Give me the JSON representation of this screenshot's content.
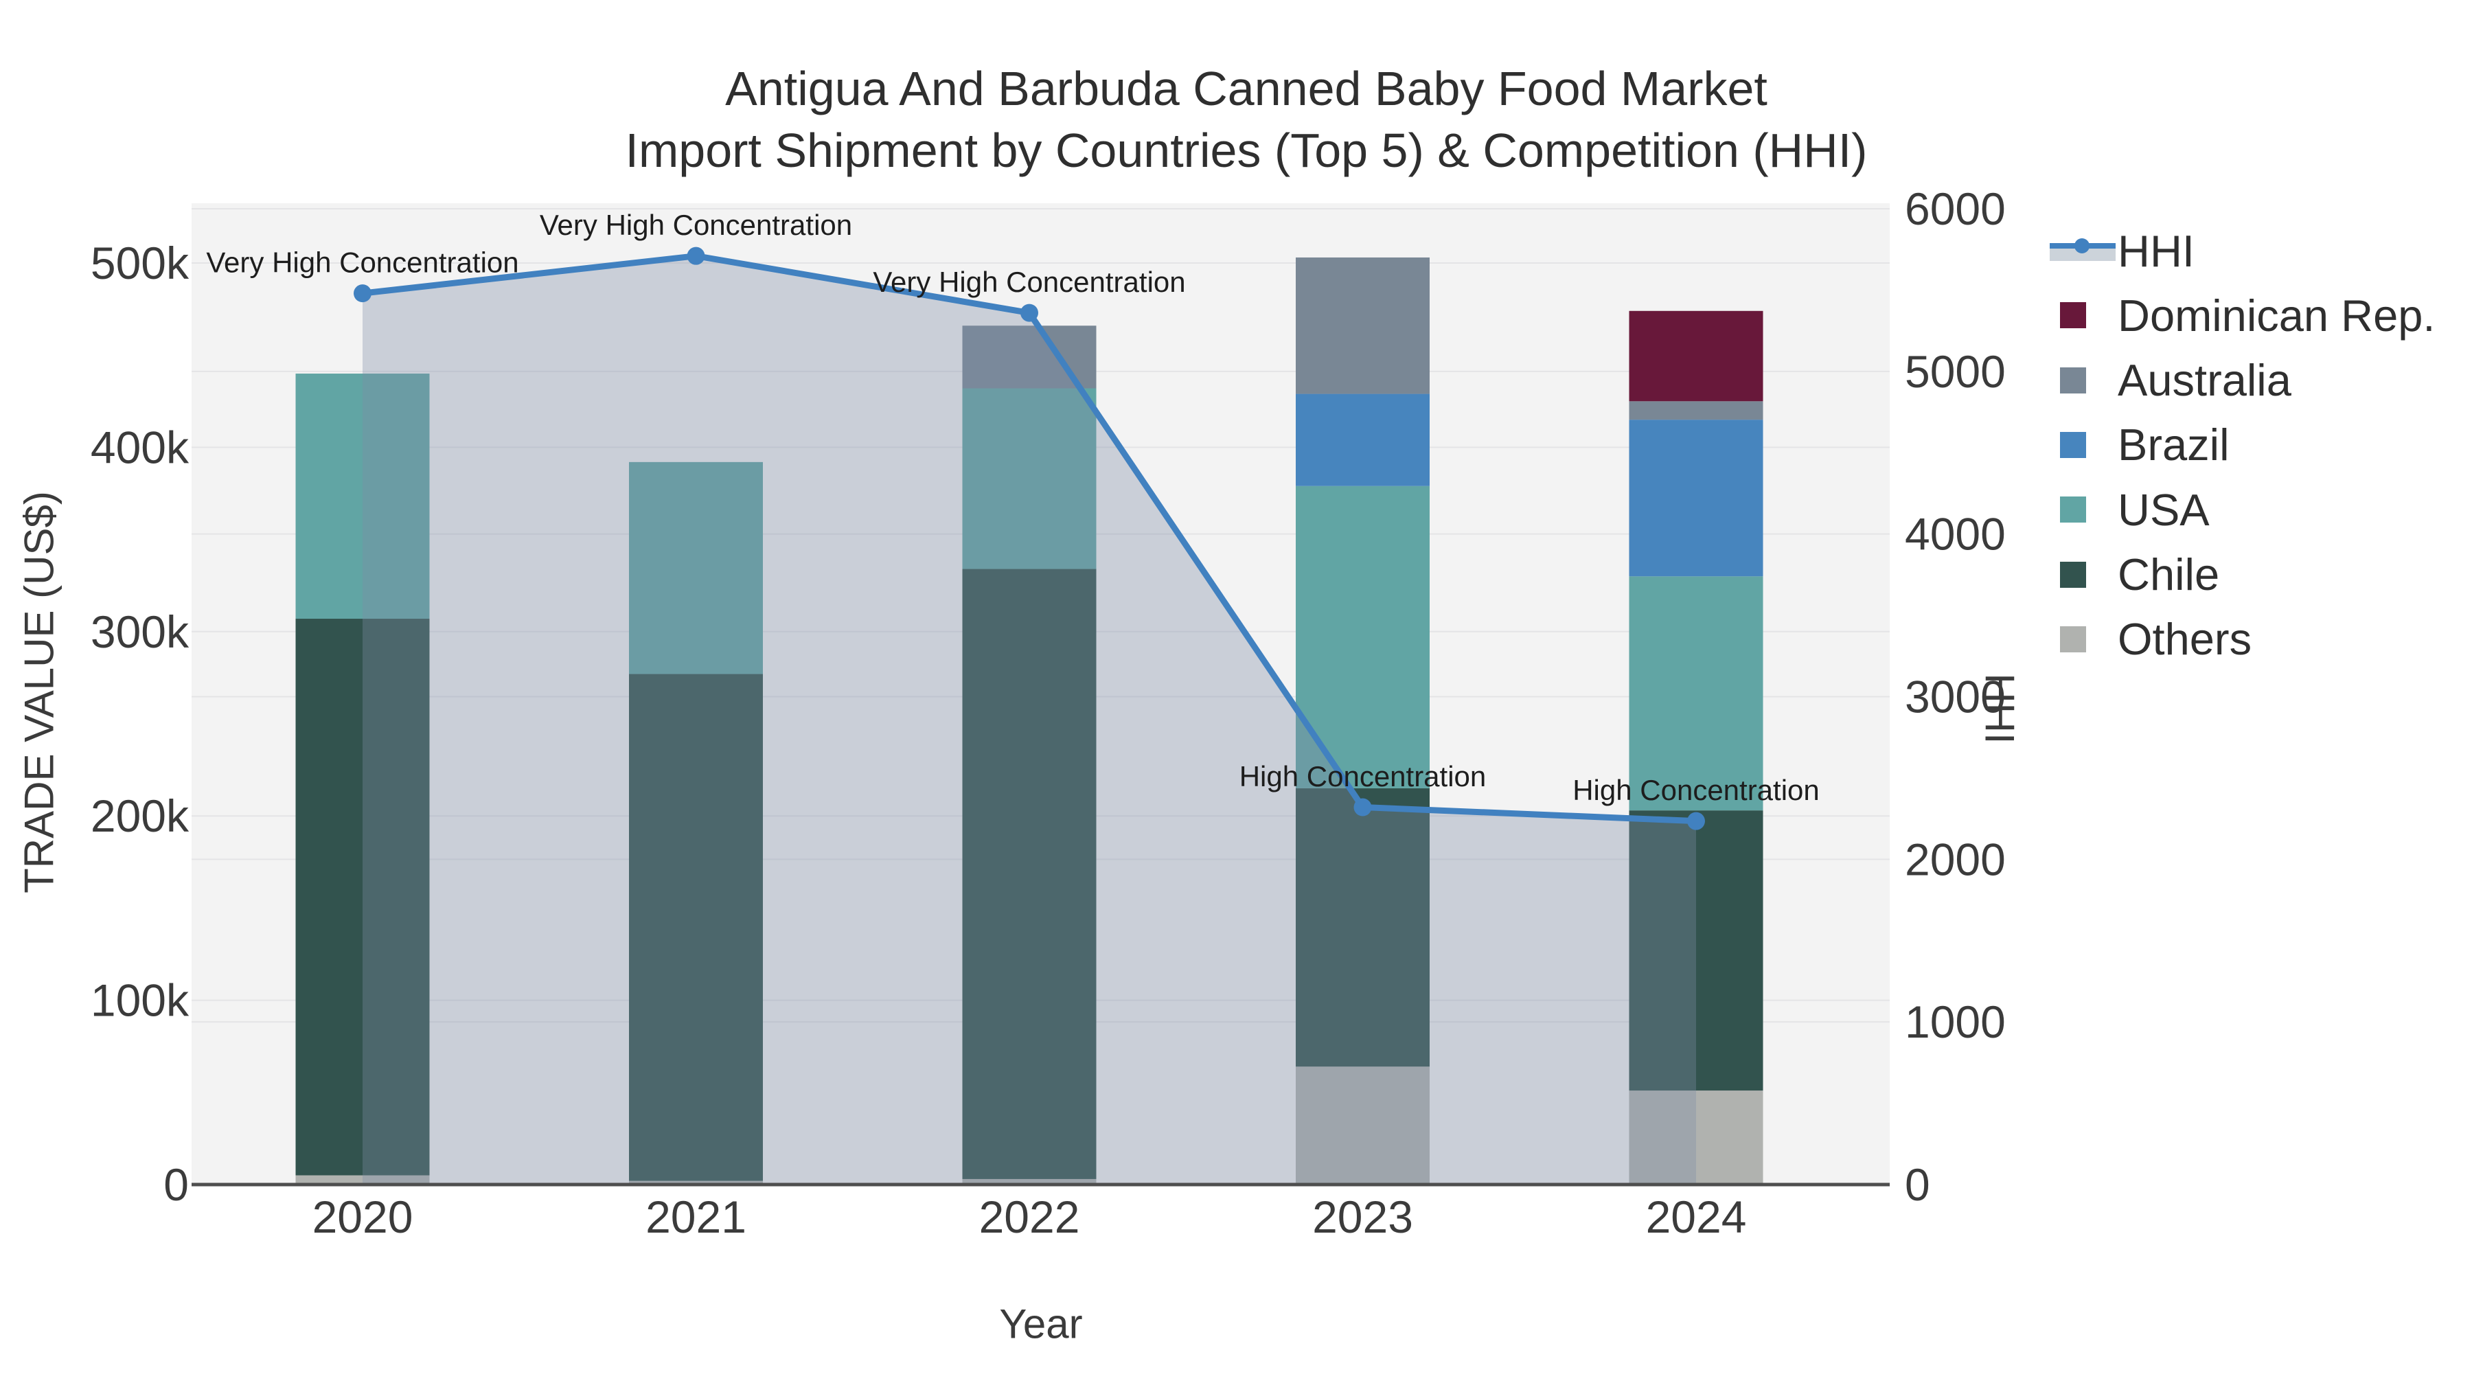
{
  "chart_data": {
    "type": "bar",
    "stacked": true,
    "secondary_line": true,
    "title_line1": "Antigua And Barbuda Canned Baby Food Market",
    "title_line2": "Import Shipment by Countries (Top 5) & Competition (HHI)",
    "xlabel": "Year",
    "ylabel_left": "TRADE VALUE (US$)",
    "ylabel_right": "HHI",
    "categories": [
      "2020",
      "2021",
      "2022",
      "2023",
      "2024"
    ],
    "series": [
      {
        "name": "Others",
        "color": "#b0b2af",
        "values": [
          5000,
          2000,
          3000,
          64000,
          51000
        ]
      },
      {
        "name": "Chile",
        "color": "#32534e",
        "values": [
          302000,
          275000,
          331000,
          151000,
          152000
        ]
      },
      {
        "name": "USA",
        "color": "#61a5a4",
        "values": [
          133000,
          115000,
          98000,
          164000,
          127000
        ]
      },
      {
        "name": "Brazil",
        "color": "#4785be",
        "values": [
          0,
          0,
          0,
          50000,
          85000
        ]
      },
      {
        "name": "Australia",
        "color": "#798795",
        "values": [
          0,
          0,
          34000,
          74000,
          10000
        ]
      },
      {
        "name": "Dominican Rep.",
        "color": "#68183a",
        "values": [
          0,
          0,
          0,
          0,
          49000
        ]
      }
    ],
    "line_series": {
      "name": "HHI",
      "axis": "right",
      "color": "#4181c0",
      "area_fill": "rgba(126,140,167,0.35)",
      "values": [
        5480,
        5710,
        5360,
        2320,
        2235
      ]
    },
    "annotations": [
      {
        "category": "2020",
        "text": "Very High Concentration"
      },
      {
        "category": "2021",
        "text": "Very High Concentration"
      },
      {
        "category": "2022",
        "text": "Very High Concentration"
      },
      {
        "category": "2023",
        "text": "High Concentration"
      },
      {
        "category": "2024",
        "text": "High Concentration"
      }
    ],
    "axes": {
      "left_ticks": [
        "0",
        "100k",
        "200k",
        "300k",
        "400k",
        "500k"
      ],
      "left_tick_values": [
        0,
        100000,
        200000,
        300000,
        400000,
        500000
      ],
      "left_max": 500000,
      "right_ticks": [
        "0",
        "1000",
        "2000",
        "3000",
        "4000",
        "5000",
        "6000"
      ],
      "right_tick_values": [
        0,
        1000,
        2000,
        3000,
        4000,
        5000,
        6000
      ],
      "right_max": 6000,
      "grid": true
    },
    "legend_order": [
      "HHI",
      "Dominican Rep.",
      "Australia",
      "Brazil",
      "USA",
      "Chile",
      "Others"
    ]
  },
  "style": {
    "plot_bg": "#f3f3f3",
    "grid_color": "#e4e4e6",
    "axis_line_color": "#4e4e4e",
    "tick_color": "#3b3b3b",
    "title_color": "#2f2f2f",
    "annotation_color": "#1d1d1d",
    "legend_band_color": "#ccd3da"
  }
}
